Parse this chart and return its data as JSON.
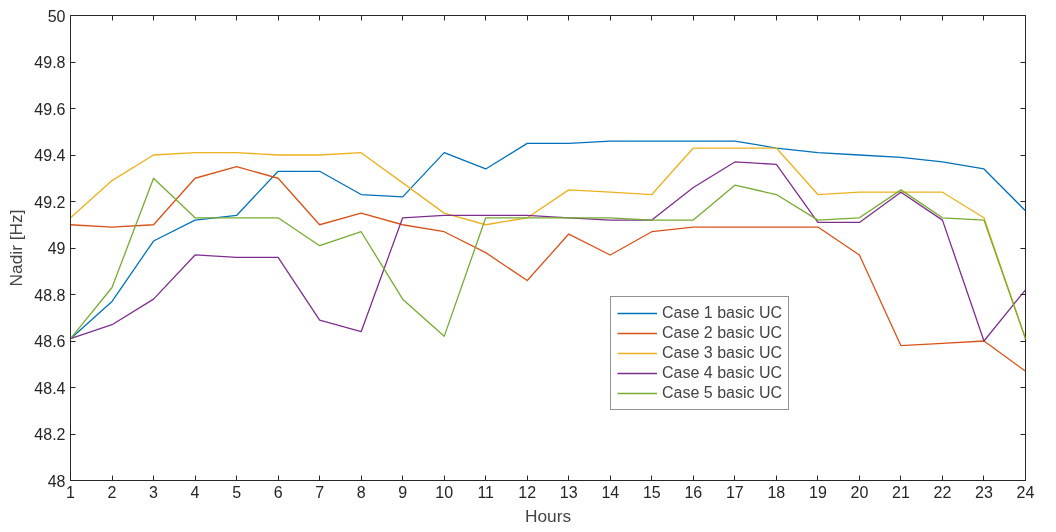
{
  "chart_data": {
    "type": "line",
    "xlabel": "Hours",
    "ylabel": "Nadir [Hz]",
    "x": [
      1,
      2,
      3,
      4,
      5,
      6,
      7,
      8,
      9,
      10,
      11,
      12,
      13,
      14,
      15,
      16,
      17,
      18,
      19,
      20,
      21,
      22,
      23,
      24
    ],
    "xlim": [
      1,
      24
    ],
    "xticks": [
      1,
      2,
      3,
      4,
      5,
      6,
      7,
      8,
      9,
      10,
      11,
      12,
      13,
      14,
      15,
      16,
      17,
      18,
      19,
      20,
      21,
      22,
      23,
      24
    ],
    "ylim": [
      48,
      50
    ],
    "yticks": [
      48,
      48.2,
      48.4,
      48.6,
      48.8,
      49,
      49.2,
      49.4,
      49.6,
      49.8,
      50
    ],
    "grid": false,
    "legend": "bottom right",
    "line_style": "solid",
    "marker": "none",
    "series": [
      {
        "name": "Case 1 basic UC",
        "color": "#0072bd",
        "values": [
          48.61,
          48.77,
          49.03,
          49.12,
          49.14,
          49.33,
          49.33,
          49.23,
          49.22,
          49.41,
          49.34,
          49.45,
          49.45,
          49.46,
          49.46,
          49.46,
          49.46,
          49.43,
          49.41,
          49.4,
          49.39,
          49.37,
          49.34,
          49.16
        ]
      },
      {
        "name": "Case 2 basic UC",
        "color": "#d95319",
        "values": [
          49.1,
          49.09,
          49.1,
          49.3,
          49.35,
          49.3,
          49.1,
          49.15,
          49.1,
          49.07,
          48.98,
          48.86,
          49.06,
          48.97,
          49.07,
          49.09,
          49.09,
          49.09,
          49.09,
          48.97,
          48.58,
          48.59,
          48.6,
          48.47
        ]
      },
      {
        "name": "Case 3 basic UC",
        "color": "#edb120",
        "values": [
          49.13,
          49.29,
          49.4,
          49.41,
          49.41,
          49.4,
          49.4,
          49.41,
          49.28,
          49.15,
          49.1,
          49.13,
          49.25,
          49.24,
          49.23,
          49.43,
          49.43,
          49.43,
          49.23,
          49.24,
          49.24,
          49.24,
          49.13,
          48.61
        ]
      },
      {
        "name": "Case 4 basic UC",
        "color": "#7e2f8e",
        "values": [
          48.61,
          48.67,
          48.78,
          48.97,
          48.96,
          48.96,
          48.69,
          48.64,
          49.13,
          49.14,
          49.14,
          49.14,
          49.13,
          49.12,
          49.12,
          49.26,
          49.37,
          49.36,
          49.11,
          49.11,
          49.24,
          49.12,
          48.6,
          48.82
        ]
      },
      {
        "name": "Case 5 basic UC",
        "color": "#77ac30",
        "values": [
          48.61,
          48.83,
          49.3,
          49.13,
          49.13,
          49.13,
          49.01,
          49.07,
          48.78,
          48.62,
          49.13,
          49.13,
          49.13,
          49.13,
          49.12,
          49.12,
          49.27,
          49.23,
          49.12,
          49.13,
          49.25,
          49.13,
          49.12,
          48.61
        ]
      }
    ]
  }
}
